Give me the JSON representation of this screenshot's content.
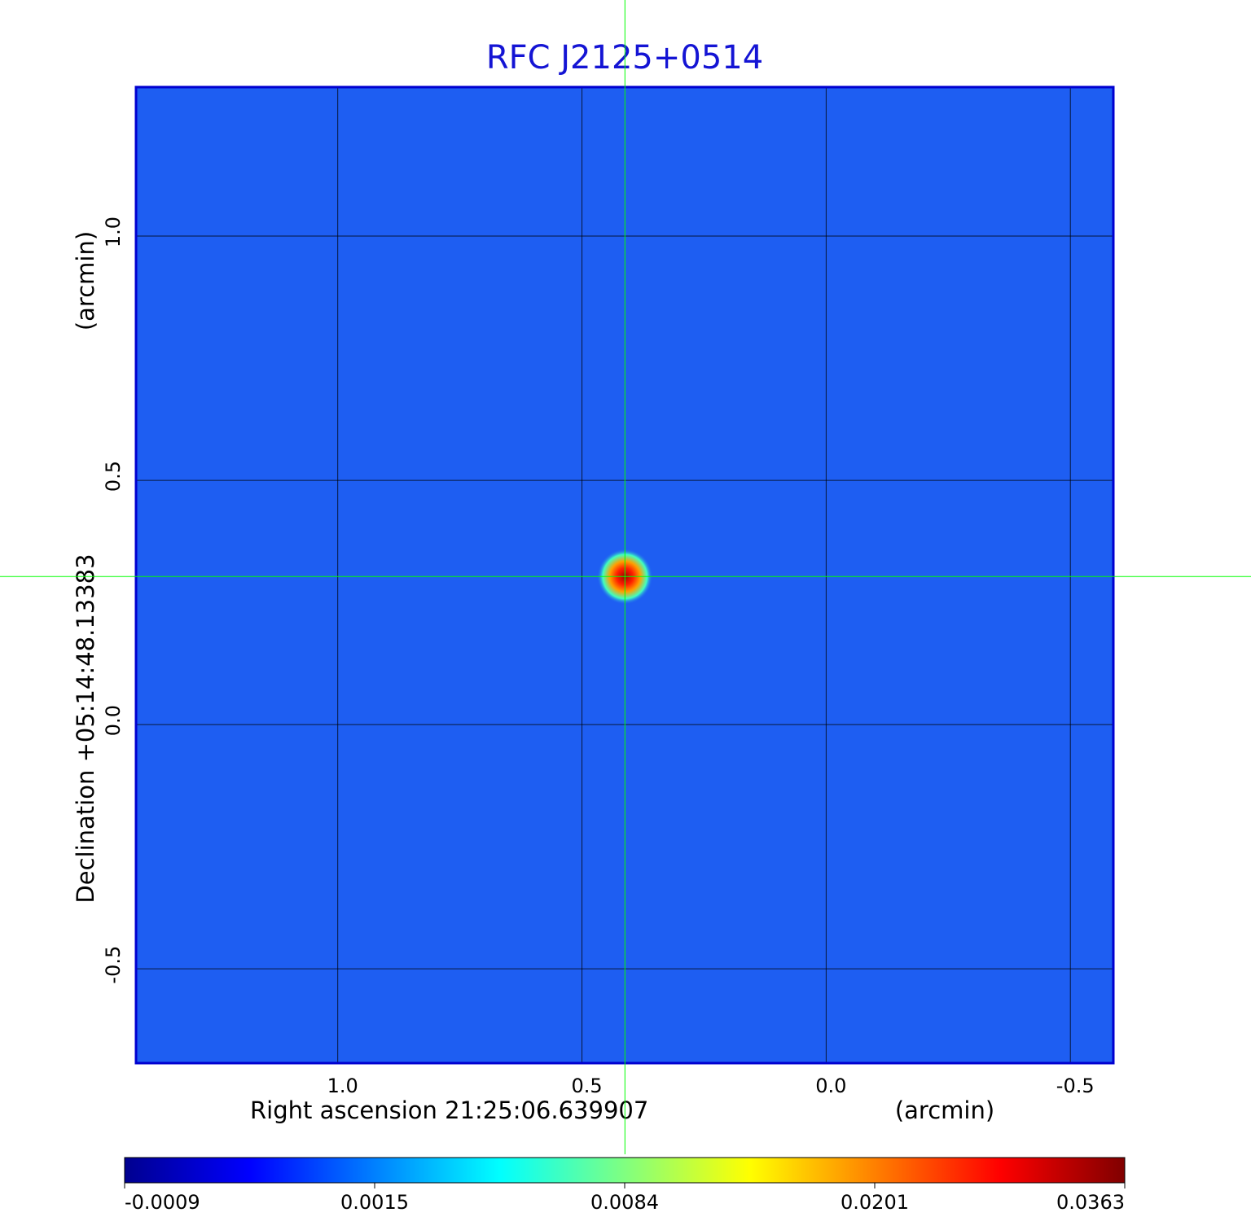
{
  "chart_data": {
    "type": "image",
    "title": "RFC J2125+0514",
    "xlabel": "Right ascension  21:25:06.639907",
    "xunit": "(arcmin)",
    "ylabel": "Declination  +05:14:48.13383",
    "yunit": "(arcmin)",
    "xlim": [
      1.413,
      -0.588
    ],
    "ylim": [
      -0.693,
      1.305
    ],
    "xticks": [
      {
        "value": 1,
        "label": "1.0"
      },
      0.5,
      {
        "value": 0,
        "label": "0.0"
      },
      -0.5
    ],
    "yticks": [
      {
        "value": 1,
        "label": "1.0"
      },
      0.5,
      {
        "value": 0,
        "label": "0.0"
      },
      -0.5
    ],
    "grid": true,
    "crosshair": {
      "x": 0.412,
      "y": 0.303,
      "color": "#00ff00"
    },
    "colorbar": {
      "ticks": [
        -0.0009,
        0.0015,
        0.0084,
        0.0201,
        0.0363
      ],
      "colors": [
        "#00008f",
        "#0000ff",
        "#0080ff",
        "#00ffff",
        "#80ff80",
        "#ffff00",
        "#ff8000",
        "#ff0000",
        "#800000"
      ]
    }
  }
}
